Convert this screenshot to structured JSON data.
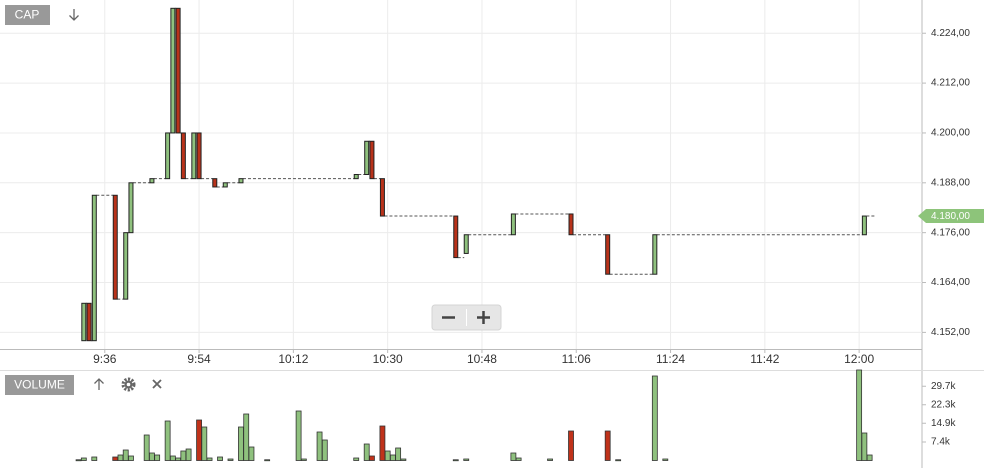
{
  "chart_data": [
    {
      "type": "candlestick",
      "label": "CAP",
      "x": [
        "9:32",
        "9:33",
        "9:34",
        "9:38",
        "9:40",
        "9:41",
        "9:45",
        "9:48",
        "9:49",
        "9:50",
        "9:51",
        "9:53",
        "9:54",
        "9:57",
        "9:59",
        "10:02",
        "10:24",
        "10:26",
        "10:27",
        "10:29",
        "10:43",
        "10:45",
        "10:54",
        "11:05",
        "11:12",
        "11:21",
        "12:01"
      ],
      "open": [
        4150,
        4159,
        4150,
        4185,
        4160,
        4176,
        4188,
        4189,
        4200,
        4230,
        4200,
        4189,
        4200,
        4189,
        4187,
        4188,
        4189,
        4190,
        4198,
        4189,
        4180,
        4171,
        4175.5,
        4180.5,
        4175.5,
        4166,
        4175.5
      ],
      "close": [
        4159,
        4150,
        4185,
        4160,
        4176,
        4188,
        4189,
        4200,
        4230,
        4200,
        4189,
        4200,
        4189,
        4187,
        4188,
        4189,
        4190,
        4198,
        4189,
        4180,
        4170,
        4175.5,
        4180.5,
        4175.5,
        4166,
        4175.5,
        4180
      ],
      "up_color": "#8fc17e",
      "down_color": "#b8321a",
      "xlim": [
        "9:16",
        "12:12"
      ],
      "xticks": [
        "9:36",
        "9:54",
        "10:12",
        "10:30",
        "10:48",
        "11:06",
        "11:24",
        "11:42",
        "12:00"
      ],
      "ylim": [
        4148,
        4232
      ],
      "yticks": [
        {
          "value": 4152,
          "label": "4.152,00"
        },
        {
          "value": 4164,
          "label": "4.164,00"
        },
        {
          "value": 4176,
          "label": "4.176,00"
        },
        {
          "value": 4188,
          "label": "4.188,00"
        },
        {
          "value": 4200,
          "label": "4.200,00"
        },
        {
          "value": 4212,
          "label": "4.212,00"
        },
        {
          "value": 4224,
          "label": "4.224,00"
        }
      ],
      "last_value": 4180,
      "last_value_label": "4.180,00",
      "last_color": "#8dc47a",
      "grid": true
    },
    {
      "type": "bar",
      "label": "VOLUME",
      "x": [
        "9:31",
        "9:32",
        "9:34",
        "9:38",
        "9:39",
        "9:40",
        "9:41",
        "9:44",
        "9:45",
        "9:46",
        "9:48",
        "9:49",
        "9:50",
        "9:51",
        "9:52",
        "9:54",
        "9:55",
        "9:56",
        "9:58",
        "10:00",
        "10:02",
        "10:03",
        "10:04",
        "10:07",
        "10:13",
        "10:14",
        "10:17",
        "10:18",
        "10:24",
        "10:26",
        "10:27",
        "10:29",
        "10:30",
        "10:31",
        "10:32",
        "10:33",
        "10:43",
        "10:45",
        "10:54",
        "10:55",
        "11:01",
        "11:05",
        "11:12",
        "11:14",
        "11:21",
        "11:23",
        "12:00",
        "12:01",
        "12:02"
      ],
      "values": [
        300,
        1000,
        1400,
        1400,
        2200,
        4200,
        1800,
        10200,
        3000,
        2200,
        15800,
        1800,
        1000,
        3800,
        4600,
        16200,
        13400,
        1000,
        1400,
        600,
        13400,
        18600,
        5400,
        300,
        19800,
        600,
        11400,
        8200,
        1000,
        6600,
        1800,
        13800,
        3800,
        2200,
        5000,
        600,
        300,
        600,
        3000,
        1000,
        600,
        11800,
        11800,
        300,
        33800,
        600,
        36200,
        11000,
        2200
      ],
      "colors": [
        "#8fc17e",
        "#8fc17e",
        "#8fc17e",
        "#c0321a",
        "#8fc17e",
        "#8fc17e",
        "#8fc17e",
        "#8fc17e",
        "#8fc17e",
        "#8fc17e",
        "#8fc17e",
        "#8fc17e",
        "#8fc17e",
        "#8fc17e",
        "#8fc17e",
        "#c0321a",
        "#8fc17e",
        "#8fc17e",
        "#8fc17e",
        "#8fc17e",
        "#8fc17e",
        "#8fc17e",
        "#8fc17e",
        "#8fc17e",
        "#8fc17e",
        "#8fc17e",
        "#8fc17e",
        "#8fc17e",
        "#8fc17e",
        "#8fc17e",
        "#c0321a",
        "#c0321a",
        "#8fc17e",
        "#8fc17e",
        "#8fc17e",
        "#8fc17e",
        "#8fc17e",
        "#8fc17e",
        "#8fc17e",
        "#8fc17e",
        "#8fc17e",
        "#c0321a",
        "#c0321a",
        "#8fc17e",
        "#8fc17e",
        "#8fc17e",
        "#8fc17e",
        "#8fc17e",
        "#8fc17e"
      ],
      "ylim": [
        0,
        36200
      ],
      "yticks": [
        {
          "value": 7400,
          "label": "7.4k"
        },
        {
          "value": 14900,
          "label": "14.9k"
        },
        {
          "value": 22300,
          "label": "22.3k"
        },
        {
          "value": 29700,
          "label": "29.7k"
        }
      ]
    }
  ]
}
